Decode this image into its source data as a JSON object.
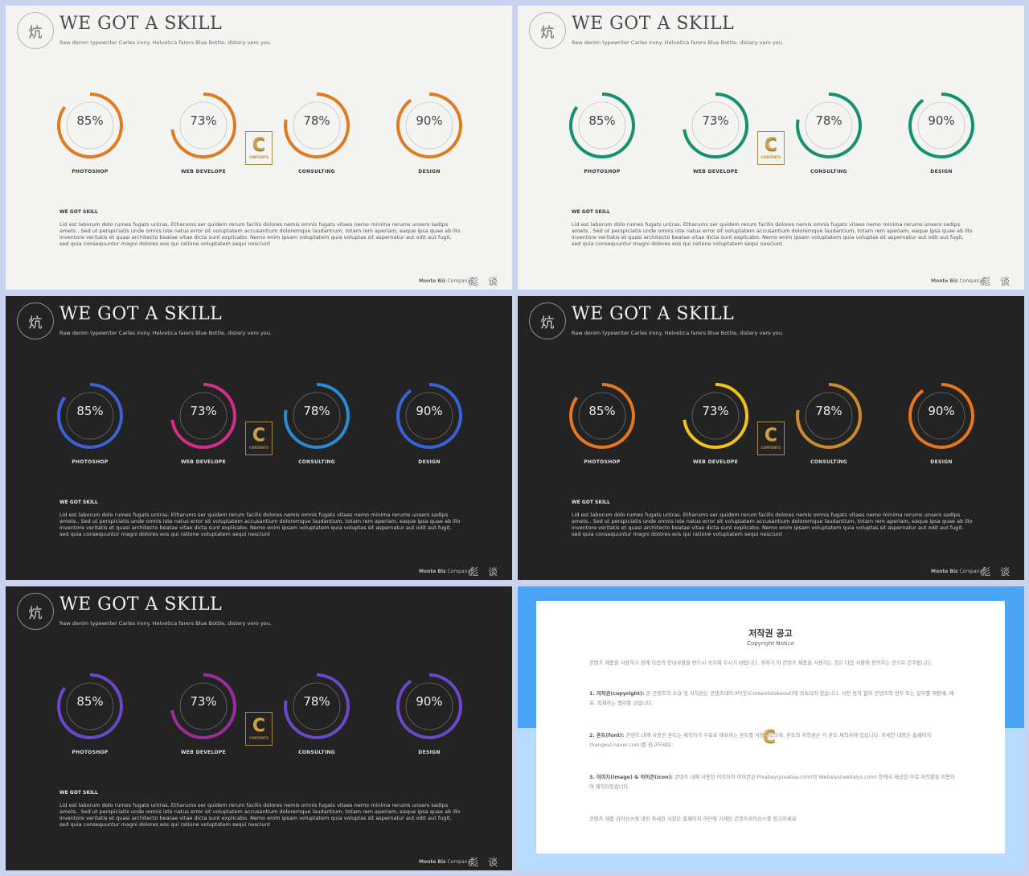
{
  "slides": [
    {
      "theme": "light",
      "ring_colors": [
        "#e07b22",
        "#e07b22",
        "#e07b22",
        "#e07b22"
      ]
    },
    {
      "theme": "light",
      "ring_colors": [
        "#17906f",
        "#17906f",
        "#17906f",
        "#17906f"
      ]
    },
    {
      "theme": "dark",
      "ring_colors": [
        "#3a62d6",
        "#d22c8e",
        "#2b8ad0",
        "#3a62d6"
      ]
    },
    {
      "theme": "dark",
      "ring_colors": [
        "#e8761c",
        "#f1c21b",
        "#c98a2e",
        "#e8761c"
      ]
    },
    {
      "theme": "dark",
      "ring_colors": [
        "#6a48c9",
        "#9a2d9e",
        "#6a48c9",
        "#6a48c9"
      ]
    }
  ],
  "header": {
    "mark_glyph": "炕",
    "title": "WE GOT A SKILL",
    "subtitle": "Raw denim typewriter Carles irony. Helvetica farers Blue Bottle, distery vero you."
  },
  "skills": [
    {
      "label": "PHOTOSHOP",
      "value": "85%",
      "fraction": 0.85
    },
    {
      "label": "WEB DEVELOPE",
      "value": "73%",
      "fraction": 0.73
    },
    {
      "label": "CONSULTING",
      "value": "78%",
      "fraction": 0.78
    },
    {
      "label": "DESIGN",
      "value": "90%",
      "fraction": 0.9
    }
  ],
  "badge": {
    "letter": "C",
    "text": "CONTENTS"
  },
  "section": {
    "heading": "WE GOT SKILL",
    "body": "Lid est laborum dolo rumes fugats untras. Etharums ser quidem rerum facilis dolores nemis omnis fugats vitaes nemo minima rerums unsers sadips amets.. Sed ut perspiciatis unde omnis iste natus error sit voluptatem accusantium doloremque laudantium, totam rem aperiam, eaque ipsa quae ab illo inventore veritatis et quasi architecto beatae vitae dicta sunt explicabo. Nemo enim ipsam voluptatem quia voluptas sit aspernatur aut odit aut fugit, sed quia consequuntur magni dolores eos qui ratione voluptatem sequi nesciunt"
  },
  "footer": {
    "brand": "Monte Biz",
    "company": "Company",
    "glyphs": "彪 谈"
  },
  "copyright": {
    "title": "저작권 공고",
    "subtitle": "Copyright Notice",
    "intro": "콘텐츠 제품을 사용하기 전에 다음의 안내사항을 반드시 숙지해 주시기 바랍니다. 귀하가 이 콘텐츠 제품을 사용하는 것은 다음 사항에 동의하는 것으로 간주됩니다.",
    "p1_head": "1. 저작권(copyright):",
    "p1": "본 콘텐츠의 소유 및 저작권은 콘텐츠테이크아웃(Contentstakeout)에 귀속되어 있습니다. 사전 동의 없이 콘텐츠의 전부 또는 일부를 재판매, 배포, 복제하는 행위를 금합니다.",
    "p2_head": "2. 폰트(font):",
    "p2": "콘텐츠 내에 사용된 폰트는 제작자가 무료로 배포하는 폰트를 사용하였으며, 폰트의 저작권은 각 폰트 제작사에 있습니다. 자세한 내용은 홈페이지(hangeul.naver.com)를 참고하세요.",
    "p3_head": "3. 이미지(image) & 아이콘(icon):",
    "p3": "콘텐츠 내에 사용된 이미지와 아이콘은 Pixabay(pixabay.com)와 Webalys(webalys.com) 등에서 제공한 무료 저작물을 이용하여 제작되었습니다.",
    "outro": "콘텐츠 제품 라이선스에 대한 자세한 사항은 홈페이지 하단에 기재된 콘텐츠라이선스를 참고하세요."
  }
}
